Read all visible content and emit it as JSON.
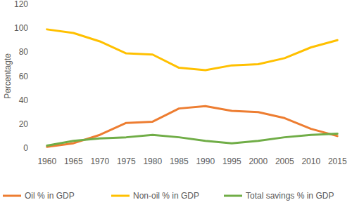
{
  "chart_data": {
    "type": "line",
    "y_label": "Percentagte",
    "categories": [
      "1960",
      "1965",
      "1970",
      "1975",
      "1980",
      "1985",
      "1990",
      "1995",
      "2000",
      "2005",
      "2010",
      "2015"
    ],
    "series": [
      {
        "name": "Oil % in GDP",
        "color": "#ed7d31",
        "values": [
          1,
          4,
          11,
          21,
          22,
          33,
          35,
          31,
          30,
          25,
          16,
          10
        ]
      },
      {
        "name": "Non-oil % in GDP",
        "color": "#ffc000",
        "values": [
          99,
          96,
          89,
          79,
          78,
          67,
          65,
          69,
          70,
          75,
          84,
          90
        ]
      },
      {
        "name": "Total savings % in GDP",
        "color": "#70ad47",
        "values": [
          2,
          6,
          8,
          9,
          11,
          9,
          6,
          4,
          6,
          9,
          11,
          12
        ]
      }
    ],
    "ylim": [
      0,
      120
    ],
    "yticks": [
      0,
      20,
      40,
      60,
      80,
      100,
      120
    ],
    "grid": false,
    "legend": "bottom"
  }
}
